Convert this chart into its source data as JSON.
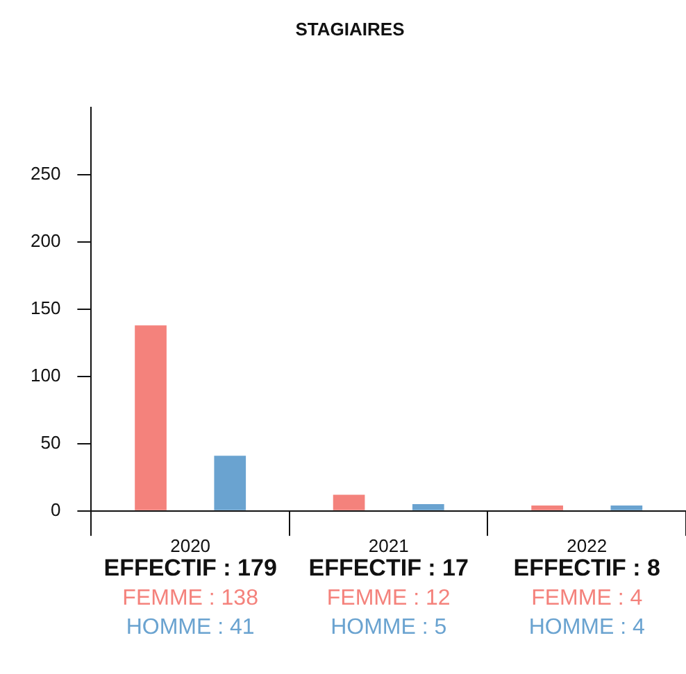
{
  "chart_data": {
    "type": "bar",
    "title": "STAGIAIRES",
    "categories": [
      "2020",
      "2021",
      "2022"
    ],
    "series": [
      {
        "color": "#f4827c",
        "values": [
          138,
          12,
          4
        ],
        "value_labels": [
          "FEMME : 138",
          "FEMME : 12",
          "FEMME : 4"
        ]
      },
      {
        "color": "#6aa3d0",
        "values": [
          41,
          5,
          4
        ],
        "value_labels": [
          "HOMME : 41",
          "HOMME : 5",
          "HOMME : 4"
        ]
      }
    ],
    "totals": [
      "EFFECTIF : 179",
      "EFFECTIF : 17",
      "EFFECTIF : 8"
    ],
    "ylim": [
      0,
      300
    ],
    "yticks": [
      0,
      50,
      100,
      150,
      200,
      250
    ],
    "grid": false,
    "legend": false
  }
}
